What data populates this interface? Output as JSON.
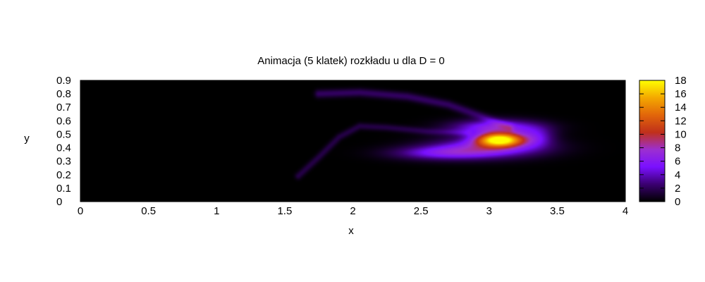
{
  "chart_data": {
    "type": "heatmap",
    "title": "Animacja (5 klatek) rozkładu u dla D = 0",
    "xlabel": "x",
    "ylabel": "y",
    "xlim": [
      0,
      4
    ],
    "ylim": [
      0,
      0.9
    ],
    "x_ticks": [
      "0",
      "0.5",
      "1",
      "1.5",
      "2",
      "2.5",
      "3",
      "3.5",
      "4"
    ],
    "y_ticks": [
      "0",
      "0.1",
      "0.2",
      "0.3",
      "0.4",
      "0.5",
      "0.6",
      "0.7",
      "0.8",
      "0.9"
    ],
    "colorbar": {
      "range": [
        0,
        18
      ],
      "ticks": [
        "0",
        "2",
        "4",
        "6",
        "8",
        "10",
        "12",
        "14",
        "16",
        "18"
      ],
      "palette": [
        "#000000",
        "#3a0070",
        "#7a10ff",
        "#9c2fd0",
        "#c0301a",
        "#e2660a",
        "#f4a800",
        "#ffff00"
      ]
    },
    "grid": false,
    "features": [
      {
        "name": "peak",
        "x": 3.08,
        "y": 0.46,
        "value": 17
      },
      {
        "name": "crescent",
        "x": 2.9,
        "y": 0.43,
        "value": 7
      },
      {
        "name": "upper-filament",
        "x": 2.3,
        "y": 0.76,
        "value": 2
      },
      {
        "name": "arc-filament",
        "x": 2.05,
        "y": 0.56,
        "value": 2
      },
      {
        "name": "tail-filament",
        "x": 1.6,
        "y": 0.2,
        "value": 1
      }
    ]
  }
}
